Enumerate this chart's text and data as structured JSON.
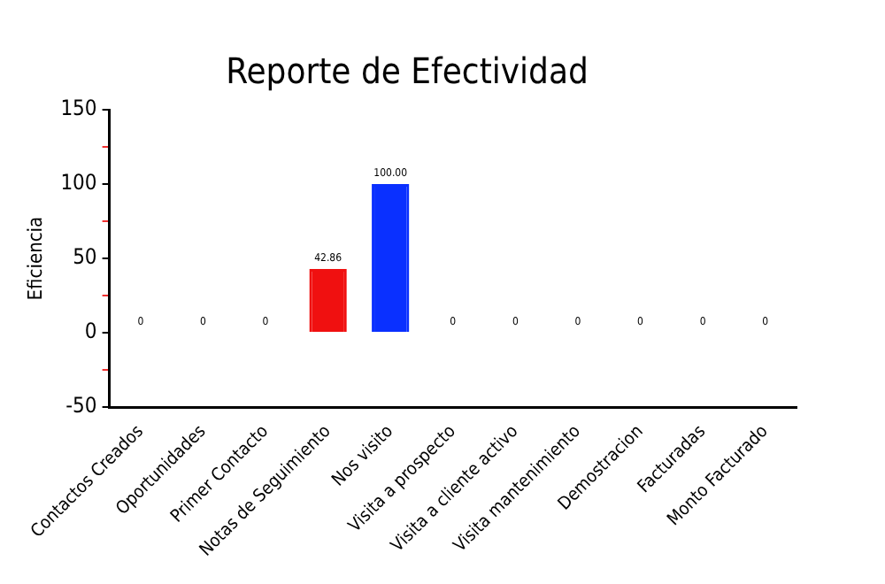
{
  "chart_data": {
    "type": "bar",
    "title": "Reporte de Efectividad",
    "ylabel": "Eficiencia",
    "categories": [
      "Contactos Creados",
      "Oportunidades",
      "Primer Contacto",
      "Notas de Seguimiento",
      "Nos visito",
      "Visita a prospecto",
      "Visita a cliente activo",
      "Visita mantenimiento",
      "Demostracion",
      "Facturadas",
      "Monto Facturado"
    ],
    "values": [
      0,
      0,
      0,
      42.86,
      100,
      0,
      0,
      0,
      0,
      0,
      0
    ],
    "value_labels": [
      "0",
      "0",
      "0",
      "42.86",
      "100.00",
      "0",
      "0",
      "0",
      "0",
      "0",
      "0"
    ],
    "colors": [
      "#f08080",
      "#f08080",
      "#f08080",
      "#f01010",
      "#0a30ff",
      "#f08080",
      "#f08080",
      "#f08080",
      "#f08080",
      "#f08080",
      "#f08080"
    ],
    "ylim": [
      -50,
      150
    ],
    "yticks": [
      -50,
      {
        "value": -25,
        "label": null
      },
      0,
      {
        "value": 25,
        "label": null
      },
      50,
      {
        "value": 75,
        "label": null
      },
      100,
      {
        "value": 125,
        "label": null
      },
      150
    ],
    "grid": false,
    "legend": false
  }
}
